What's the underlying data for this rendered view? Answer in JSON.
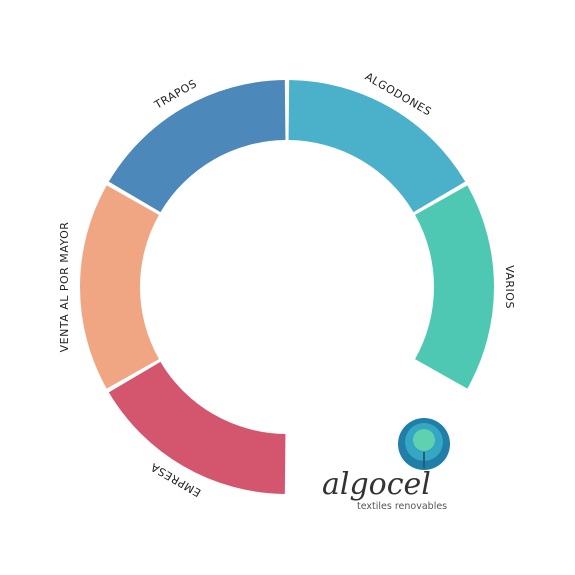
{
  "menu": {
    "items": [
      {
        "label": "ALGODONES",
        "color": "#4bb0ca"
      },
      {
        "label": "VARIOS",
        "color": "#4ec8b3"
      },
      {
        "label": "EMPRESA",
        "color": "#d4566e"
      },
      {
        "label": "VENTA AL POR MAYOR",
        "color": "#f0a683"
      },
      {
        "label": "TRAPOS",
        "color": "#4d88bb"
      }
    ]
  },
  "logo": {
    "name": "algocel",
    "tagline": "textiles renovables"
  }
}
